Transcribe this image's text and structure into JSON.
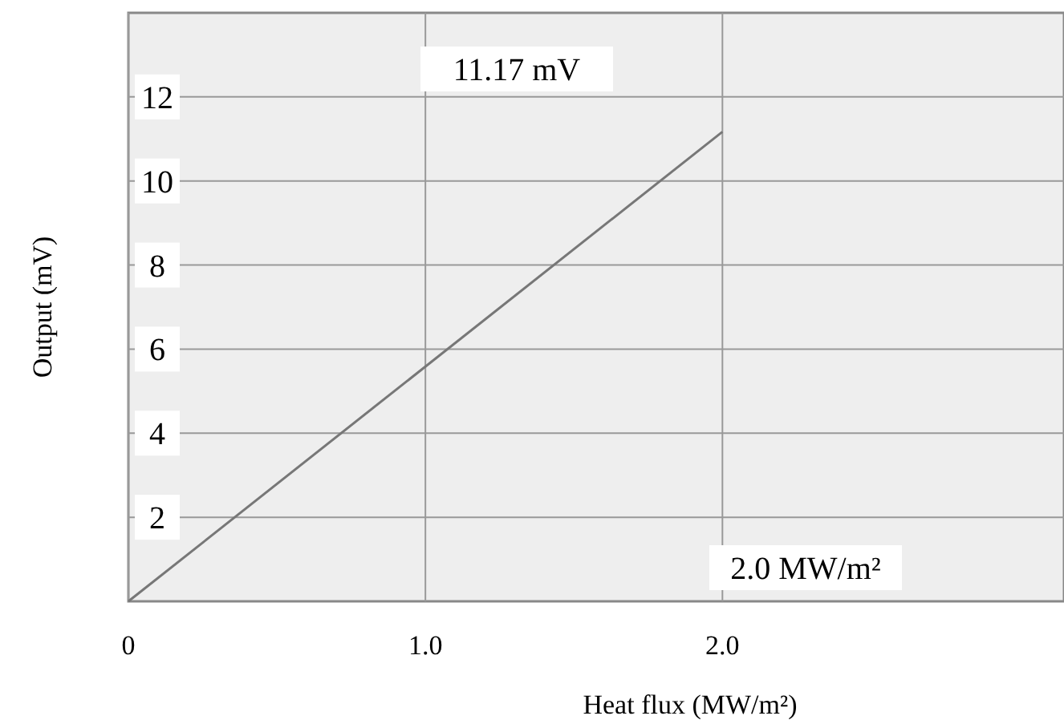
{
  "chart_data": {
    "type": "line",
    "xlabel": "Heat flux (MW/m²)",
    "ylabel": "Output (mV)",
    "x": [
      0,
      2.0
    ],
    "series": [
      {
        "color": "#777777",
        "values": [
          0,
          11.17
        ]
      }
    ],
    "xlim": [
      0,
      3.15
    ],
    "ylim": [
      0,
      14
    ],
    "xticks": [
      0,
      {
        "value": 1,
        "label": "1.0"
      },
      {
        "value": 2,
        "label": "2.0"
      }
    ],
    "yticks": [
      2,
      4,
      6,
      8,
      10,
      12
    ],
    "grid": true,
    "line_style": "solid",
    "annotations": [
      "11.17 mV",
      "2.0 MW/m²"
    ]
  }
}
